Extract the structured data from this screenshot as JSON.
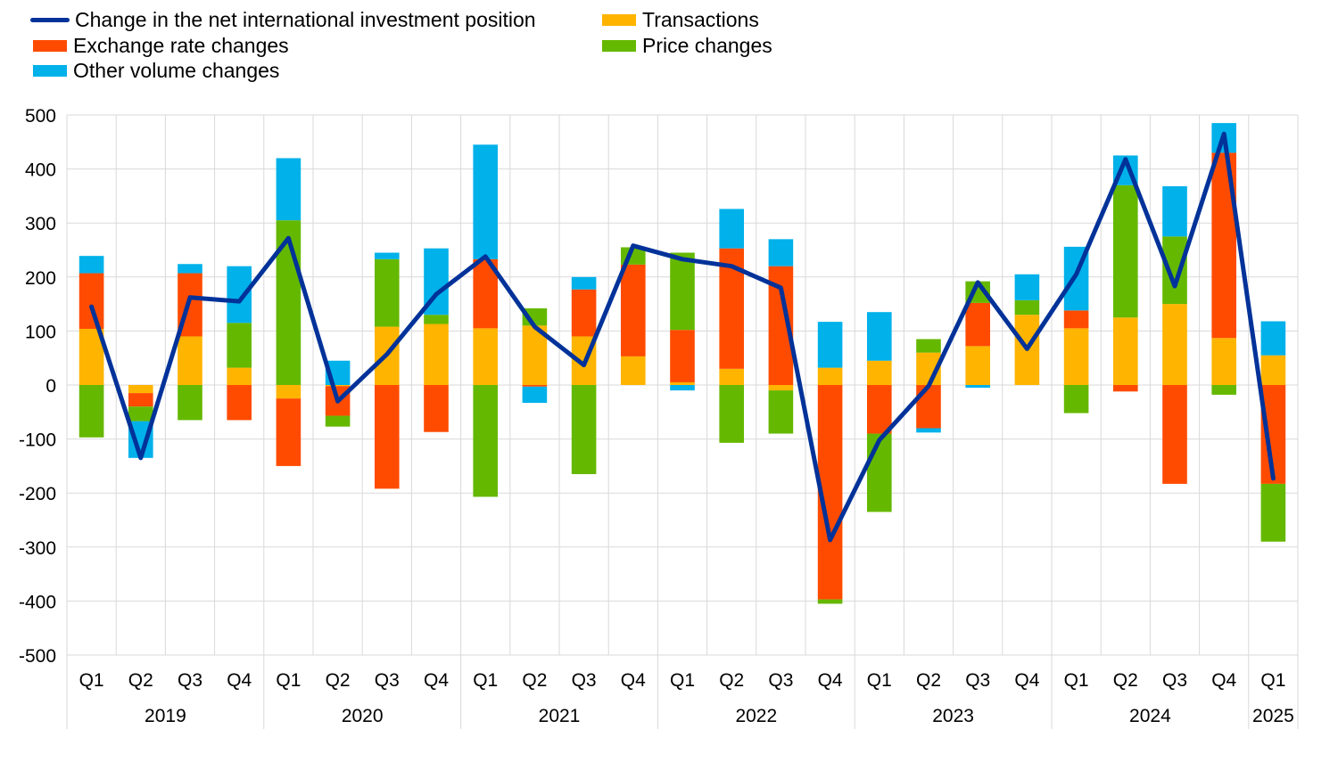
{
  "legend": {
    "items": [
      {
        "label": "Change in the net international investment position",
        "kind": "line",
        "color": "#003299"
      },
      {
        "label": "Transactions",
        "kind": "bar",
        "color": "#FFB400"
      },
      {
        "label": "Exchange rate changes",
        "kind": "bar",
        "color": "#FF4B00"
      },
      {
        "label": "Price changes",
        "kind": "bar",
        "color": "#65B800"
      },
      {
        "label": "Other volume changes",
        "kind": "bar",
        "color": "#00B1EA"
      }
    ]
  },
  "chart_data": {
    "type": "bar",
    "stacked": true,
    "ylim": [
      -500,
      500
    ],
    "yticks": [
      -500,
      -400,
      -300,
      -200,
      -100,
      0,
      100,
      200,
      300,
      400,
      500
    ],
    "grid": true,
    "legend_position": "top-left",
    "categories": [
      "Q1",
      "Q2",
      "Q3",
      "Q4",
      "Q1",
      "Q2",
      "Q3",
      "Q4",
      "Q1",
      "Q2",
      "Q3",
      "Q4",
      "Q1",
      "Q2",
      "Q3",
      "Q4",
      "Q1",
      "Q2",
      "Q3",
      "Q4",
      "Q1",
      "Q2",
      "Q3",
      "Q4",
      "Q1"
    ],
    "years": [
      {
        "label": "2019",
        "span": 4
      },
      {
        "label": "2020",
        "span": 4
      },
      {
        "label": "2021",
        "span": 4
      },
      {
        "label": "2022",
        "span": 4
      },
      {
        "label": "2023",
        "span": 4
      },
      {
        "label": "2024",
        "span": 4
      },
      {
        "label": "2025",
        "span": 1
      }
    ],
    "series": [
      {
        "name": "Transactions",
        "type": "bar",
        "color": "#FFB400",
        "values": [
          104,
          -15,
          90,
          32,
          -25,
          -2,
          108,
          113,
          105,
          110,
          90,
          53,
          5,
          30,
          -10,
          32,
          45,
          60,
          72,
          130,
          105,
          125,
          150,
          87,
          55
        ]
      },
      {
        "name": "Exchange rate changes",
        "type": "bar",
        "color": "#FF4B00",
        "values": [
          103,
          -25,
          117,
          -65,
          -125,
          -55,
          -192,
          -87,
          128,
          -3,
          87,
          170,
          97,
          223,
          220,
          -397,
          -90,
          -80,
          80,
          0,
          33,
          -12,
          -183,
          343,
          -183
        ]
      },
      {
        "name": "Price changes",
        "type": "bar",
        "color": "#65B800",
        "values": [
          -97,
          -27,
          -65,
          83,
          305,
          -20,
          125,
          17,
          -207,
          32,
          -165,
          32,
          143,
          -107,
          -80,
          -8,
          -145,
          25,
          40,
          27,
          -52,
          245,
          125,
          -18,
          -107
        ]
      },
      {
        "name": "Other volume changes",
        "type": "bar",
        "color": "#00B1EA",
        "values": [
          32,
          -68,
          17,
          105,
          115,
          45,
          12,
          123,
          212,
          -30,
          23,
          0,
          -10,
          73,
          50,
          85,
          90,
          -8,
          -5,
          48,
          118,
          55,
          93,
          55,
          63
        ]
      },
      {
        "name": "Change in the net international investment position",
        "type": "line",
        "color": "#003299",
        "values": [
          145,
          -135,
          162,
          155,
          272,
          -30,
          57,
          168,
          238,
          108,
          37,
          258,
          233,
          220,
          180,
          -287,
          -102,
          -2,
          190,
          67,
          205,
          418,
          183,
          465,
          -173
        ]
      }
    ]
  }
}
